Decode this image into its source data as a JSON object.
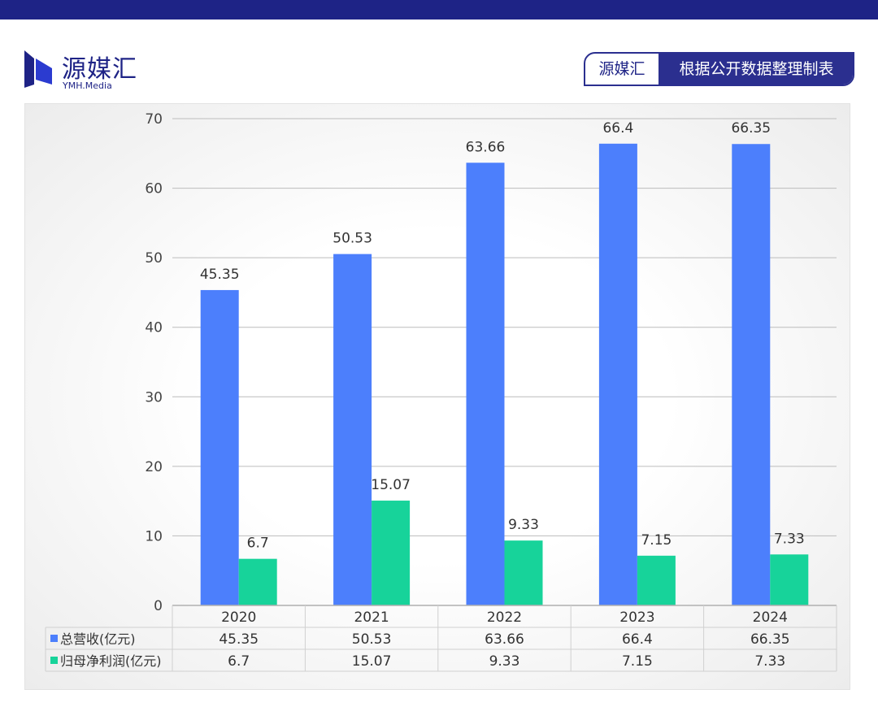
{
  "brand": {
    "name_cn": "源媒汇",
    "name_en": "YMH.Media",
    "color": "#1e2386"
  },
  "source_tag": {
    "left": "源媒汇",
    "right": "根据公开数据整理制表"
  },
  "chart_data": {
    "type": "bar",
    "categories": [
      "2020",
      "2021",
      "2022",
      "2023",
      "2024"
    ],
    "series": [
      {
        "name": "总营收(亿元)",
        "values": [
          45.35,
          50.53,
          63.66,
          66.4,
          66.35
        ],
        "color": "#4c7ffc"
      },
      {
        "name": "归母净利润(亿元)",
        "values": [
          6.7,
          15.07,
          9.33,
          7.15,
          7.33
        ],
        "color": "#17d39a"
      }
    ],
    "value_labels": [
      [
        "45.35",
        "50.53",
        "63.66",
        "66.4",
        "66.35"
      ],
      [
        "6.7",
        "15.07",
        "9.33",
        "7.15",
        "7.33"
      ]
    ],
    "ylim": [
      0,
      70
    ],
    "yticks": [
      "0",
      "10",
      "20",
      "30",
      "40",
      "50",
      "60",
      "70"
    ],
    "grid": true,
    "legend": "data-table"
  }
}
